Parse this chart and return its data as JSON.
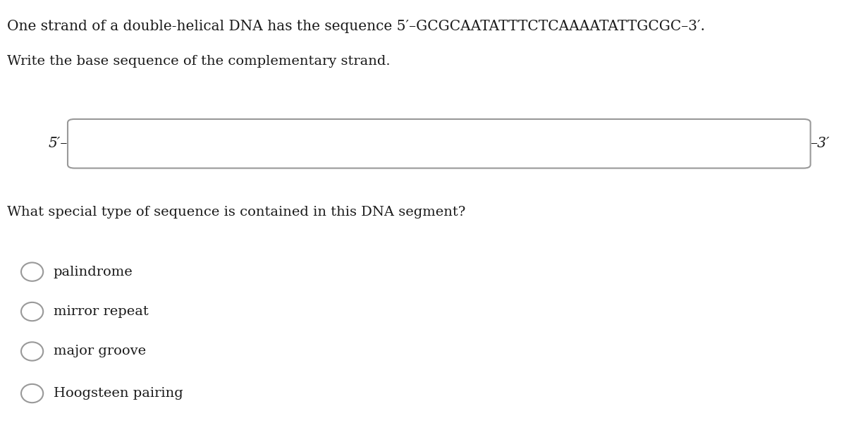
{
  "title_line": "One strand of a double-helical DNA has the sequence 5′–GCGCAATATTTCTCAAAATATTGCGC–3′.",
  "subtitle_line": "Write the base sequence of the complementary strand.",
  "label_left": "5′–",
  "label_right": "–3′",
  "question": "What special type of sequence is contained in this DNA segment?",
  "options": [
    "palindrome",
    "mirror repeat",
    "major groove",
    "Hoogsteen pairing"
  ],
  "bg_color": "#ffffff",
  "text_color": "#1a1a1a",
  "box_edge_color": "#999999",
  "font_size_title": 14.5,
  "font_size_body": 14,
  "font_size_label": 14.5,
  "font_size_option": 14
}
